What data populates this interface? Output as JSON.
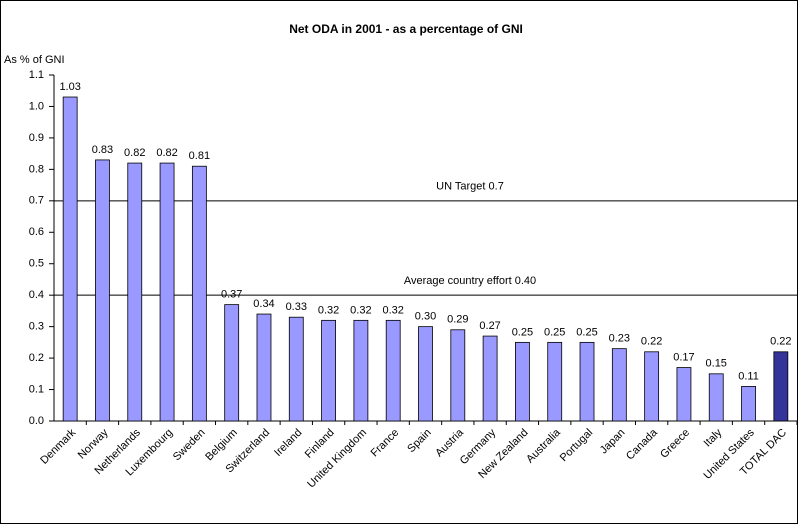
{
  "chart_data": {
    "type": "bar",
    "title": "Net ODA in 2001 - as a percentage of GNI",
    "y_label": "As % of GNI",
    "categories": [
      "Denmark",
      "Norway",
      "Netherlands",
      "Luxembourg",
      "Sweden",
      "Belgium",
      "Switzerland",
      "Ireland",
      "Finland",
      "United Kingdom",
      "France",
      "Spain",
      "Austria",
      "Germany",
      "New Zealand",
      "Australia",
      "Portugal",
      "Japan",
      "Canada",
      "Greece",
      "Italy",
      "United States",
      "TOTAL DAC"
    ],
    "values": [
      1.03,
      0.83,
      0.82,
      0.82,
      0.81,
      0.37,
      0.34,
      0.33,
      0.32,
      0.32,
      0.32,
      0.3,
      0.29,
      0.27,
      0.25,
      0.25,
      0.25,
      0.23,
      0.22,
      0.17,
      0.15,
      0.11,
      0.22
    ],
    "value_labels": [
      "1.03",
      "0.83",
      "0.82",
      "0.82",
      "0.81",
      "0.37",
      "0.34",
      "0.33",
      "0.32",
      "0.32",
      "0.32",
      "0.30",
      "0.29",
      "0.27",
      "0.25",
      "0.25",
      "0.25",
      "0.23",
      "0.22",
      "0.17",
      "0.15",
      "0.11",
      "0.22"
    ],
    "colors": [
      "#9999ff",
      "#9999ff",
      "#9999ff",
      "#9999ff",
      "#9999ff",
      "#9999ff",
      "#9999ff",
      "#9999ff",
      "#9999ff",
      "#9999ff",
      "#9999ff",
      "#9999ff",
      "#9999ff",
      "#9999ff",
      "#9999ff",
      "#9999ff",
      "#9999ff",
      "#9999ff",
      "#9999ff",
      "#9999ff",
      "#9999ff",
      "#9999ff",
      "#333399"
    ],
    "ylim": [
      0,
      1.1
    ],
    "yticks": [
      {
        "value": 0,
        "label": "0.0"
      },
      0.1,
      0.2,
      0.3,
      0.4,
      0.5,
      0.6,
      0.7,
      0.8,
      0.9,
      {
        "value": 1,
        "label": "1.0"
      },
      1.1
    ],
    "reference_lines": [
      {
        "value": 0.7,
        "label": "UN Target 0.7"
      },
      {
        "value": 0.4,
        "label": "Average country effort 0.40"
      }
    ]
  }
}
